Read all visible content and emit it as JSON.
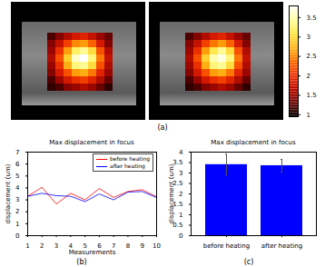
{
  "chart_data": [
    {
      "type": "heatmap",
      "annotation": "(a)",
      "images": [
        {
          "cells": [
            [
              1.2,
              1.4,
              1.6,
              1.8,
              1.9,
              1.7,
              1.5,
              1.3
            ],
            [
              1.4,
              1.7,
              2.1,
              2.5,
              2.6,
              2.3,
              1.8,
              1.4
            ],
            [
              1.5,
              2.0,
              2.6,
              3.2,
              3.4,
              3.0,
              2.2,
              1.6
            ],
            [
              1.6,
              2.2,
              2.9,
              3.6,
              3.8,
              3.3,
              2.4,
              1.7
            ],
            [
              1.5,
              2.0,
              2.7,
              3.3,
              3.4,
              3.0,
              2.2,
              1.6
            ],
            [
              1.4,
              1.8,
              2.2,
              2.6,
              2.7,
              2.4,
              1.9,
              1.5
            ],
            [
              1.2,
              1.5,
              1.8,
              2.0,
              2.1,
              1.9,
              1.6,
              1.3
            ],
            [
              1.1,
              1.2,
              1.4,
              1.5,
              1.6,
              1.5,
              1.3,
              1.1
            ]
          ]
        },
        {
          "cells": [
            [
              1.2,
              1.4,
              1.6,
              1.8,
              1.9,
              1.7,
              1.5,
              1.3
            ],
            [
              1.4,
              1.7,
              2.1,
              2.4,
              2.6,
              2.3,
              1.8,
              1.4
            ],
            [
              1.5,
              2.0,
              2.6,
              3.1,
              3.4,
              3.0,
              2.2,
              1.6
            ],
            [
              1.6,
              2.2,
              2.9,
              3.5,
              3.7,
              3.3,
              2.4,
              1.7
            ],
            [
              1.5,
              2.0,
              2.7,
              3.3,
              3.4,
              3.0,
              2.2,
              1.6
            ],
            [
              1.4,
              1.8,
              2.2,
              2.6,
              2.7,
              2.4,
              1.9,
              1.5
            ],
            [
              1.2,
              1.5,
              1.8,
              2.0,
              2.1,
              1.9,
              1.6,
              1.3
            ],
            [
              1.1,
              1.2,
              1.4,
              1.5,
              1.6,
              1.5,
              1.3,
              1.1
            ]
          ]
        }
      ],
      "colorbar_range": [
        0.95,
        3.8
      ],
      "colorbar_ticks": [
        1,
        1.5,
        2,
        2.5,
        3,
        3.5
      ]
    },
    {
      "type": "line",
      "annotation": "(b)",
      "title": "Max displacement in focus",
      "x_label": "Measurements",
      "y_label": "displacement (um)",
      "x": [
        1,
        2,
        3,
        4,
        5,
        6,
        7,
        8,
        9,
        10
      ],
      "series": [
        {
          "name": "before heating",
          "color": "#ff0000",
          "values": [
            3.3,
            4.05,
            2.65,
            3.55,
            3.0,
            3.95,
            3.2,
            3.7,
            3.85,
            3.25
          ]
        },
        {
          "name": "after heating",
          "color": "#0000ff",
          "values": [
            3.3,
            3.55,
            3.35,
            3.3,
            2.85,
            3.5,
            3.0,
            3.65,
            3.7,
            3.2
          ]
        }
      ],
      "xlim": [
        1,
        10
      ],
      "xticks": [
        1,
        2,
        3,
        4,
        5,
        6,
        7,
        8,
        9,
        10
      ],
      "ylim": [
        0,
        7
      ],
      "yticks": [
        0,
        1,
        2,
        3,
        4,
        5,
        6,
        7
      ],
      "legend": "upper right"
    },
    {
      "type": "bar",
      "annotation": "(c)",
      "title": "Max displacement in focus",
      "y_label": "displacement (um)",
      "categories": [
        "before heating",
        "after heating"
      ],
      "values": [
        3.4,
        3.35
      ],
      "errors": [
        0.5,
        0.3
      ],
      "color": "#0000ff",
      "ylim": [
        0,
        4
      ],
      "yticks": [
        0,
        0.5,
        1,
        1.5,
        2,
        2.5,
        3,
        3.5,
        4
      ]
    }
  ]
}
